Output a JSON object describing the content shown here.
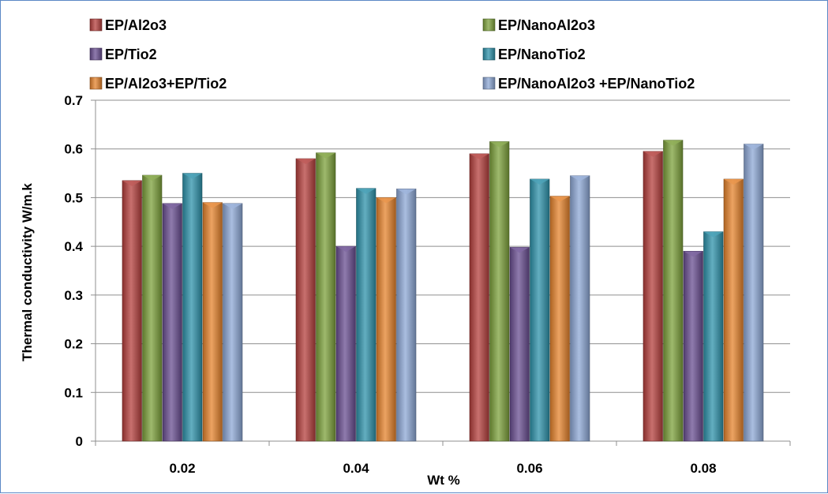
{
  "chart_data": {
    "type": "bar",
    "categories": [
      "0.02",
      "0.04",
      "0.06",
      "0.08"
    ],
    "series": [
      {
        "name": "EP/Al2o3",
        "color": "#b5403d",
        "values": [
          0.535,
          0.58,
          0.59,
          0.595
        ]
      },
      {
        "name": "EP/NanoAl2o3",
        "color": "#7da13c",
        "values": [
          0.546,
          0.592,
          0.615,
          0.618
        ]
      },
      {
        "name": "EP/Tio2",
        "color": "#6a4f91",
        "values": [
          0.488,
          0.4,
          0.398,
          0.39
        ]
      },
      {
        "name": "EP/NanoTio2",
        "color": "#2f93ab",
        "values": [
          0.55,
          0.519,
          0.538,
          0.43
        ]
      },
      {
        "name": "EP/Al2o3+EP/Tio2",
        "color": "#e6842d",
        "values": [
          0.49,
          0.5,
          0.503,
          0.538
        ]
      },
      {
        "name": "EP/NanoAl2o3 +EP/NanoTio2",
        "color": "#8ea8d6",
        "values": [
          0.488,
          0.518,
          0.545,
          0.61
        ]
      }
    ],
    "xlabel": "Wt %",
    "ylabel": "Thermal conductivity W/m.k",
    "ylim": [
      0,
      0.7
    ],
    "yticks": [
      "0",
      "0.1",
      "0.2",
      "0.3",
      "0.4",
      "0.5",
      "0.6",
      "0.7"
    ],
    "grid": true,
    "legend_position": "top"
  }
}
